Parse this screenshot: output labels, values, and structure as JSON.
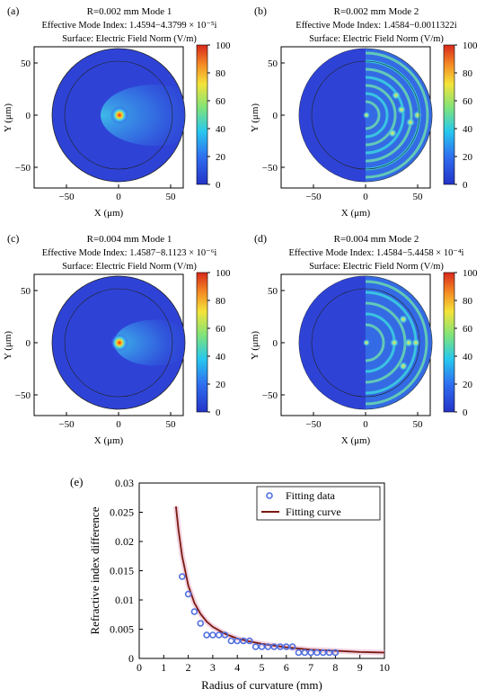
{
  "panels": [
    {
      "tag": "(a)",
      "title_line1": "R=0.002 mm   Mode 1",
      "title_line2": "Effective Mode Index: 1.4594−4.3799 × 10⁻⁵i",
      "title_line3": "Surface: Electric Field Norm (V/m)",
      "xlabel": "X (μm)",
      "ylabel": "Y (μm)",
      "xticks": [
        "−50",
        "0",
        "50"
      ],
      "yticks": [
        "50",
        "0",
        "−50"
      ],
      "colorbar_ticks": [
        "100",
        "80",
        "60",
        "40",
        "20",
        "0"
      ],
      "mode": 1
    },
    {
      "tag": "(b)",
      "title_line1": "R=0.002 mm   Mode 2",
      "title_line2": "Effective Mode Index: 1.4584−0.0011322i",
      "title_line3": "Surface: Electric Field Norm (V/m)",
      "xlabel": "X (μm)",
      "ylabel": "Y (μm)",
      "xticks": [
        "−50",
        "0",
        "50"
      ],
      "yticks": [
        "50",
        "0",
        "−50"
      ],
      "colorbar_ticks": [
        "100",
        "80",
        "60",
        "40",
        "20",
        "0"
      ],
      "mode": 2
    },
    {
      "tag": "(c)",
      "title_line1": "R=0.004 mm   Mode 1",
      "title_line2": "Effective Mode Index: 1.4587−8.1123 × 10⁻⁶i",
      "title_line3": "Surface: Electric Field Norm (V/m)",
      "xlabel": "X (μm)",
      "ylabel": "Y (μm)",
      "xticks": [
        "−50",
        "0",
        "50"
      ],
      "yticks": [
        "50",
        "0",
        "−50"
      ],
      "colorbar_ticks": [
        "100",
        "80",
        "60",
        "40",
        "20",
        "0"
      ],
      "mode": 1
    },
    {
      "tag": "(d)",
      "title_line1": "R=0.004 mm   Mode 2",
      "title_line2": "Effective Mode Index: 1.4584−5.4458 × 10⁻⁴i",
      "title_line3": "Surface: Electric Field Norm (V/m)",
      "xlabel": "X (μm)",
      "ylabel": "Y (μm)",
      "xticks": [
        "−50",
        "0",
        "50"
      ],
      "yticks": [
        "50",
        "0",
        "−50"
      ],
      "colorbar_ticks": [
        "100",
        "80",
        "60",
        "40",
        "20",
        "0"
      ],
      "mode": 2
    }
  ],
  "chart_data": {
    "type": "scatter",
    "tag": "(e)",
    "xlabel": "Radius of curvature (mm)",
    "ylabel": "Refractive index difference",
    "xlim": [
      0,
      10
    ],
    "ylim": [
      0,
      0.03
    ],
    "xticks": [
      "0",
      "1",
      "2",
      "3",
      "4",
      "5",
      "6",
      "7",
      "8",
      "9",
      "10"
    ],
    "yticks": [
      "0",
      "0.005",
      "0.01",
      "0.015",
      "0.02",
      "0.025",
      "0.03"
    ],
    "legend_position": "top-right",
    "series": [
      {
        "name": "Fitting data",
        "kind": "points",
        "color": "#4f6fe0",
        "x": [
          1.75,
          2.0,
          2.25,
          2.5,
          2.75,
          3.0,
          3.25,
          3.5,
          3.75,
          4.0,
          4.25,
          4.5,
          4.75,
          5.0,
          5.25,
          5.5,
          5.75,
          6.0,
          6.25,
          6.5,
          6.75,
          7.0,
          7.25,
          7.5,
          7.75,
          8.0
        ],
        "y": [
          0.014,
          0.011,
          0.008,
          0.006,
          0.004,
          0.004,
          0.004,
          0.004,
          0.003,
          0.003,
          0.003,
          0.003,
          0.002,
          0.002,
          0.002,
          0.002,
          0.002,
          0.002,
          0.002,
          0.001,
          0.001,
          0.001,
          0.001,
          0.001,
          0.001,
          0.001
        ]
      },
      {
        "name": "Fitting curve",
        "kind": "line",
        "color": "#7a1a12",
        "x": [
          1.5,
          1.6,
          1.75,
          2.0,
          2.25,
          2.5,
          2.75,
          3.0,
          3.5,
          4.0,
          4.5,
          5.0,
          5.5,
          6.0,
          6.5,
          7.0,
          7.5,
          8.0,
          8.5,
          9.0,
          9.5,
          10.0
        ],
        "y": [
          0.026,
          0.022,
          0.0175,
          0.0125,
          0.0095,
          0.0076,
          0.0063,
          0.0054,
          0.0042,
          0.0034,
          0.0029,
          0.0025,
          0.0022,
          0.0019,
          0.0017,
          0.0015,
          0.0014,
          0.0013,
          0.0012,
          0.0011,
          0.00105,
          0.001
        ]
      }
    ]
  }
}
